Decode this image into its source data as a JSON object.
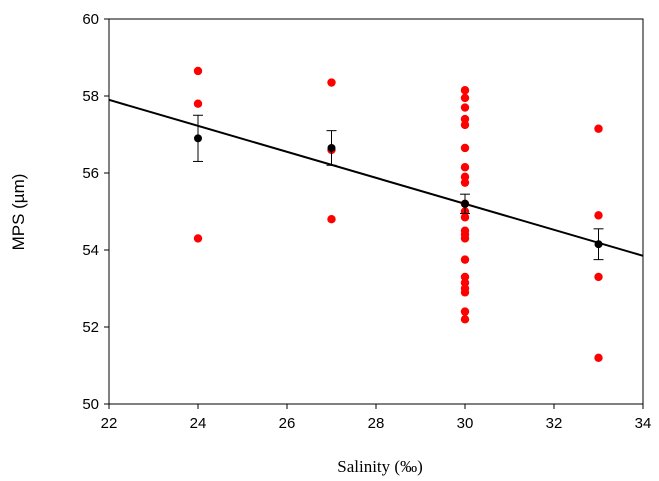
{
  "chart_data": {
    "type": "scatter",
    "xlabel": "Salinity (‰)",
    "ylabel": "MPS (µm)",
    "xlim": [
      22,
      34
    ],
    "ylim": [
      50,
      60
    ],
    "x_ticks": [
      "22",
      "24",
      "26",
      "28",
      "30",
      "32",
      "34"
    ],
    "y_ticks": [
      "50",
      "52",
      "54",
      "56",
      "58",
      "60"
    ],
    "grid": false,
    "colors": {
      "points": "#ff0000",
      "means": "#000000",
      "line": "#000000",
      "frame": "#000000"
    },
    "series": [
      {
        "kind": "observations",
        "points": [
          {
            "x": 24,
            "y": 58.65
          },
          {
            "x": 24,
            "y": 57.8
          },
          {
            "x": 24,
            "y": 54.3
          },
          {
            "x": 27,
            "y": 58.35
          },
          {
            "x": 27,
            "y": 56.6
          },
          {
            "x": 27,
            "y": 54.8
          },
          {
            "x": 30,
            "y": 58.15
          },
          {
            "x": 30,
            "y": 57.95
          },
          {
            "x": 30,
            "y": 57.7
          },
          {
            "x": 30,
            "y": 57.4
          },
          {
            "x": 30,
            "y": 57.25
          },
          {
            "x": 30,
            "y": 56.65
          },
          {
            "x": 30,
            "y": 56.15
          },
          {
            "x": 30,
            "y": 55.9
          },
          {
            "x": 30,
            "y": 55.75
          },
          {
            "x": 30,
            "y": 55.2
          },
          {
            "x": 30,
            "y": 55.0
          },
          {
            "x": 30,
            "y": 54.85
          },
          {
            "x": 30,
            "y": 54.5
          },
          {
            "x": 30,
            "y": 54.4
          },
          {
            "x": 30,
            "y": 54.3
          },
          {
            "x": 30,
            "y": 53.75
          },
          {
            "x": 30,
            "y": 53.3
          },
          {
            "x": 30,
            "y": 53.15
          },
          {
            "x": 30,
            "y": 53.0
          },
          {
            "x": 30,
            "y": 52.9
          },
          {
            "x": 30,
            "y": 52.4
          },
          {
            "x": 30,
            "y": 52.2
          },
          {
            "x": 33,
            "y": 57.15
          },
          {
            "x": 33,
            "y": 54.9
          },
          {
            "x": 33,
            "y": 53.3
          },
          {
            "x": 33,
            "y": 51.2
          }
        ]
      },
      {
        "kind": "means",
        "points": [
          {
            "x": 24,
            "y": 56.9,
            "err": 0.6
          },
          {
            "x": 27,
            "y": 56.65,
            "err": 0.45
          },
          {
            "x": 30,
            "y": 55.2,
            "err": 0.25
          },
          {
            "x": 33,
            "y": 54.15,
            "err": 0.4
          }
        ]
      }
    ],
    "regression_line": {
      "x": [
        22,
        34
      ],
      "y": [
        57.9,
        53.85
      ]
    }
  }
}
